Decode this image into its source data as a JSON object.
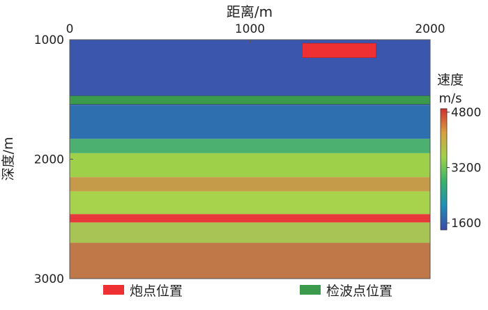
{
  "chart_data": {
    "type": "heatmap",
    "xlabel": "距离/m",
    "ylabel": "深度/m",
    "xlim": [
      0,
      2000
    ],
    "ylim": [
      1000,
      3000
    ],
    "y_inverted": true,
    "x_axis_position": "top",
    "x_ticks": [
      {
        "value": 0,
        "label": "0"
      },
      {
        "value": 1000,
        "label": "1000"
      },
      {
        "value": 2000,
        "label": "2000"
      }
    ],
    "y_ticks": [
      {
        "value": 1000,
        "label": "1000"
      },
      {
        "value": 2000,
        "label": "2000"
      },
      {
        "value": 3000,
        "label": "3000"
      }
    ],
    "colorbar": {
      "title_line1": "速度",
      "title_line2": "m/s",
      "min": 1400,
      "max": 4900,
      "ticks": [
        {
          "value": 1600,
          "label": "1600"
        },
        {
          "value": 3200,
          "label": "3200"
        },
        {
          "value": 4800,
          "label": "4800"
        }
      ],
      "colors": [
        "#3b4ba8",
        "#1f8fb8",
        "#38b36a",
        "#9ed24a",
        "#d9a040",
        "#d23030"
      ]
    },
    "velocity_layers": [
      {
        "depth_top": 1000,
        "depth_bottom": 1550,
        "velocity": 1500,
        "color": "#3a56ad"
      },
      {
        "depth_top": 1550,
        "depth_bottom": 1830,
        "velocity": 1800,
        "color": "#2e6fb0"
      },
      {
        "depth_top": 1830,
        "depth_bottom": 1950,
        "velocity": 2600,
        "color": "#4cb070"
      },
      {
        "depth_top": 1950,
        "depth_bottom": 2150,
        "velocity": 3300,
        "color": "#9fd04a"
      },
      {
        "depth_top": 2150,
        "depth_bottom": 2270,
        "velocity": 3900,
        "color": "#c59a48"
      },
      {
        "depth_top": 2270,
        "depth_bottom": 2460,
        "velocity": 3400,
        "color": "#a6d24c"
      },
      {
        "depth_top": 2460,
        "depth_bottom": 2530,
        "velocity": 4800,
        "color": "#e83a3a"
      },
      {
        "depth_top": 2530,
        "depth_bottom": 2700,
        "velocity": 3500,
        "color": "#a8c455"
      },
      {
        "depth_top": 2700,
        "depth_bottom": 3000,
        "velocity": 4000,
        "color": "#c07848"
      }
    ],
    "sources": {
      "x_start": 1290,
      "x_end": 1700,
      "depth_top": 1030,
      "depth_bottom": 1150,
      "color": "#ee3033"
    },
    "receivers": {
      "x_start": 0,
      "x_end": 2000,
      "depth_top": 1470,
      "depth_bottom": 1540,
      "color": "#3b9a4c"
    },
    "legend": {
      "placement": "bottom",
      "items": [
        {
          "label": "炮点位置",
          "color": "#ee3033"
        },
        {
          "label": "检波点位置",
          "color": "#3b9a4c"
        }
      ]
    }
  }
}
